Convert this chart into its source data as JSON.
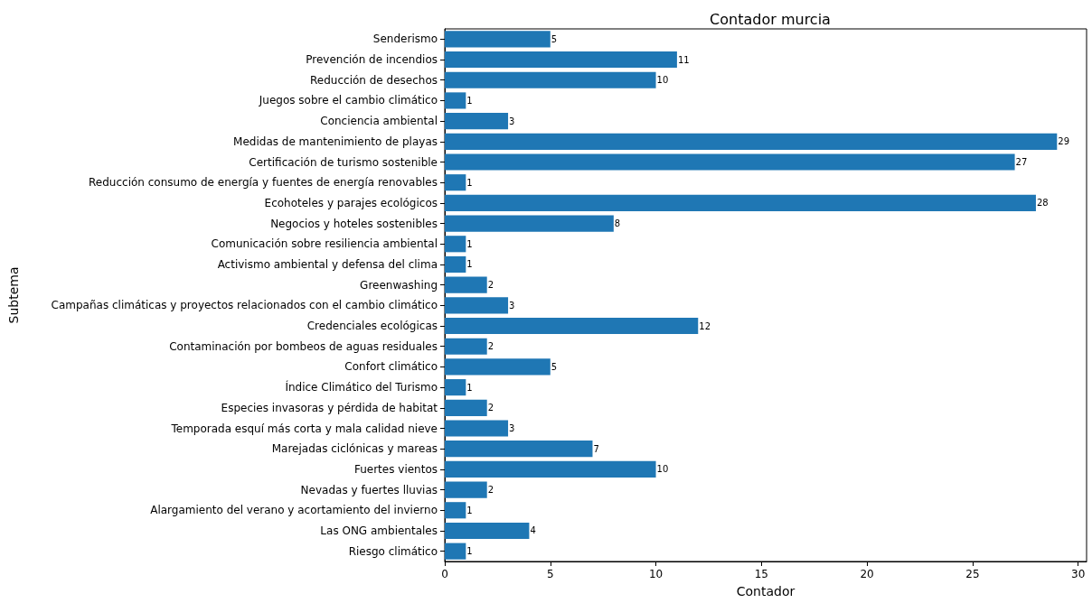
{
  "chart_data": {
    "type": "bar",
    "orientation": "horizontal",
    "title": "Contador murcia",
    "xlabel": "Contador",
    "ylabel": "Subtema",
    "categories": [
      "Senderismo",
      "Prevención de incendios",
      "Reducción de desechos",
      "Juegos sobre el cambio climático",
      "Conciencia ambiental",
      "Medidas de mantenimiento de playas",
      "Certificación de turismo sostenible",
      "Reducción consumo de energía y fuentes de energía renovables",
      "Ecohoteles y parajes ecológicos",
      "Negocios y hoteles sostenibles",
      "Comunicación sobre resiliencia ambiental",
      "Activismo ambiental y defensa del clima",
      "Greenwashing",
      "Campañas climáticas y proyectos relacionados con el cambio climático",
      "Credenciales ecológicas",
      "Contaminación por bombeos de aguas residuales",
      "Confort climático",
      "Índice Climático del Turismo",
      "Especies invasoras y pérdida de habitat",
      "Temporada esquí más corta y mala calidad nieve",
      "Marejadas ciclónicas y mareas",
      "Fuertes vientos",
      "Nevadas y fuertes lluvias",
      "Alargamiento del verano y acortamiento del invierno",
      "Las ONG ambientales",
      "Riesgo climático"
    ],
    "values": [
      5,
      11,
      10,
      1,
      3,
      29,
      27,
      1,
      28,
      8,
      1,
      1,
      2,
      3,
      12,
      2,
      5,
      1,
      2,
      3,
      7,
      10,
      2,
      1,
      4,
      1
    ],
    "color": "#1f77b4",
    "data_labels": true,
    "xlim": [
      0,
      30.4
    ],
    "xticks": [
      0,
      5,
      10,
      15,
      20,
      25,
      30
    ],
    "grid": false
  }
}
